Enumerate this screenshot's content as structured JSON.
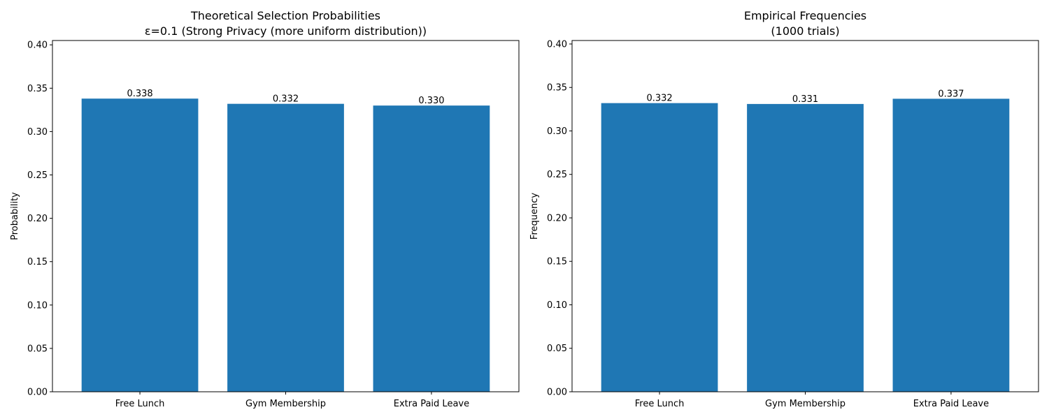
{
  "chart_data": [
    {
      "type": "bar",
      "title_lines": [
        "Theoretical Selection Probabilities",
        "ε=0.1 (Strong Privacy (more uniform distribution))"
      ],
      "xlabel": "",
      "ylabel": "Probability",
      "categories": [
        "Free Lunch",
        "Gym Membership",
        "Extra Paid Leave"
      ],
      "values": [
        0.338,
        0.332,
        0.33
      ],
      "value_labels": [
        "0.338",
        "0.332",
        "0.330"
      ],
      "ylim": [
        0,
        0.405
      ],
      "yticks": [
        0.0,
        0.05,
        0.1,
        0.15,
        0.2,
        0.25,
        0.3,
        0.35,
        0.4
      ],
      "ytick_labels": [
        "0.00",
        "0.05",
        "0.10",
        "0.15",
        "0.20",
        "0.25",
        "0.30",
        "0.35",
        "0.40"
      ],
      "bar_color": "#1f77b4",
      "grid": false
    },
    {
      "type": "bar",
      "title_lines": [
        "Empirical Frequencies",
        "(1000 trials)"
      ],
      "xlabel": "",
      "ylabel": "Frequency",
      "categories": [
        "Free Lunch",
        "Gym Membership",
        "Extra Paid Leave"
      ],
      "values": [
        0.332,
        0.331,
        0.337
      ],
      "value_labels": [
        "0.332",
        "0.331",
        "0.337"
      ],
      "ylim": [
        0,
        0.404
      ],
      "yticks": [
        0.0,
        0.05,
        0.1,
        0.15,
        0.2,
        0.25,
        0.3,
        0.35,
        0.4
      ],
      "ytick_labels": [
        "0.00",
        "0.05",
        "0.10",
        "0.15",
        "0.20",
        "0.25",
        "0.30",
        "0.35",
        "0.40"
      ],
      "bar_color": "#1f77b4",
      "grid": false
    }
  ]
}
